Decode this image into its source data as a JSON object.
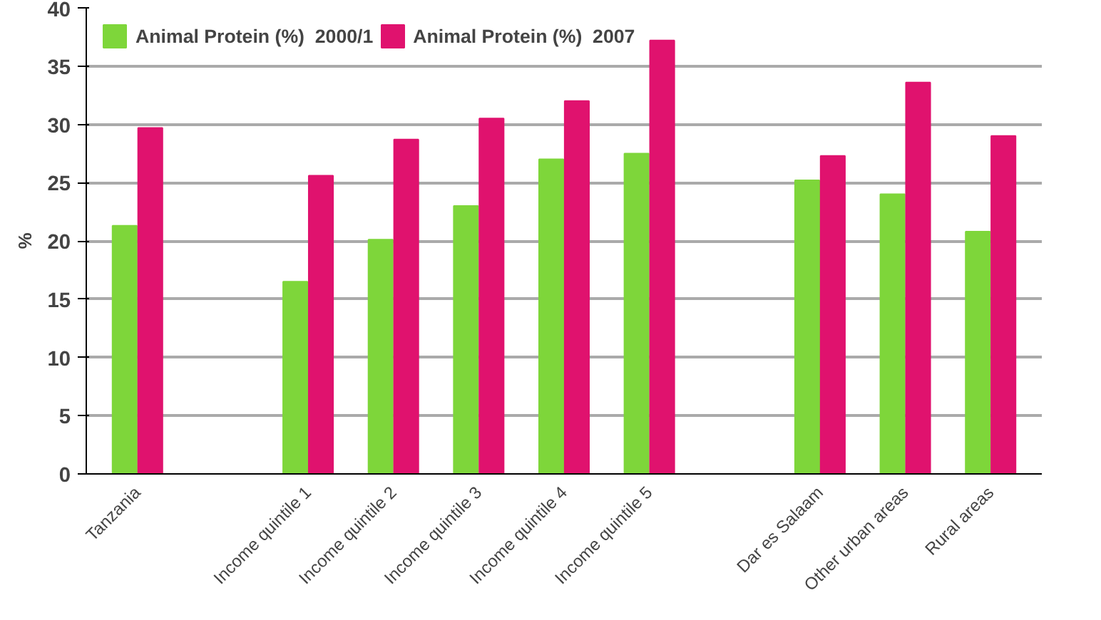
{
  "chart_data": {
    "type": "bar",
    "ylabel": "%",
    "categories": [
      "Tanzania",
      null,
      "Income quintile 1",
      "Income quintile 2",
      "Income quintile 3",
      "Income quintile 4",
      "Income quintile 5",
      null,
      "Dar es Salaam",
      "Other urban areas",
      "Rural areas"
    ],
    "series": [
      {
        "name": "Animal Protein (%)  2000/1",
        "color": "#7ed63a",
        "values": [
          21.3,
          null,
          16.5,
          20.1,
          23,
          27,
          27.5,
          null,
          25.2,
          24,
          20.8
        ]
      },
      {
        "name": "Animal Protein (%)  2007",
        "color": "#e0126e",
        "values": [
          29.7,
          null,
          25.6,
          28.7,
          30.5,
          32,
          37.2,
          null,
          27.3,
          33.6,
          29
        ]
      }
    ],
    "ylim": [
      0,
      40
    ],
    "yticks": [
      0,
      5,
      10,
      15,
      20,
      25,
      30,
      35,
      40
    ],
    "grid": "y",
    "legend": "top"
  }
}
